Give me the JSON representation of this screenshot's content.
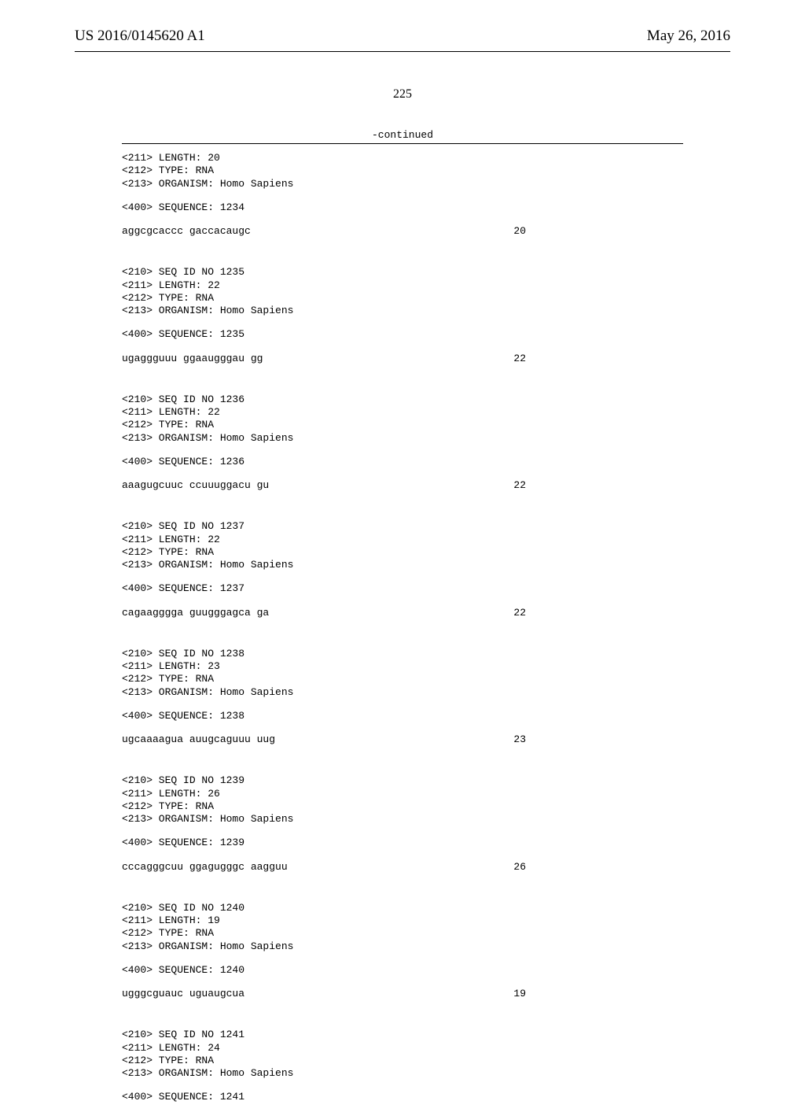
{
  "header": {
    "left": "US 2016/0145620 A1",
    "right": "May 26, 2016"
  },
  "page_number": "225",
  "continued_label": "-continued",
  "sequences": [
    {
      "show_seq_id": false,
      "seq_id": "",
      "length": "20",
      "type": "RNA",
      "organism": "Homo Sapiens",
      "seq_number": "1234",
      "data": "aggcgcaccc gaccacaugc",
      "data_length": "20"
    },
    {
      "show_seq_id": true,
      "seq_id": "1235",
      "length": "22",
      "type": "RNA",
      "organism": "Homo Sapiens",
      "seq_number": "1235",
      "data": "ugaggguuu ggaaugggau gg",
      "data_length": "22"
    },
    {
      "show_seq_id": true,
      "seq_id": "1236",
      "length": "22",
      "type": "RNA",
      "organism": "Homo Sapiens",
      "seq_number": "1236",
      "data": "aaagugcuuc ccuuuggacu gu",
      "data_length": "22"
    },
    {
      "show_seq_id": true,
      "seq_id": "1237",
      "length": "22",
      "type": "RNA",
      "organism": "Homo Sapiens",
      "seq_number": "1237",
      "data": "cagaagggga guugggagca ga",
      "data_length": "22"
    },
    {
      "show_seq_id": true,
      "seq_id": "1238",
      "length": "23",
      "type": "RNA",
      "organism": "Homo Sapiens",
      "seq_number": "1238",
      "data": "ugcaaaagua auugcaguuu uug",
      "data_length": "23"
    },
    {
      "show_seq_id": true,
      "seq_id": "1239",
      "length": "26",
      "type": "RNA",
      "organism": "Homo Sapiens",
      "seq_number": "1239",
      "data": "cccagggcuu ggagugggc aagguu",
      "data_length": "26"
    },
    {
      "show_seq_id": true,
      "seq_id": "1240",
      "length": "19",
      "type": "RNA",
      "organism": "Homo Sapiens",
      "seq_number": "1240",
      "data": "ugggcguauc uguaugcua",
      "data_length": "19"
    },
    {
      "show_seq_id": true,
      "seq_id": "1241",
      "length": "24",
      "type": "RNA",
      "organism": "Homo Sapiens",
      "seq_number": "1241",
      "data": "",
      "data_length": ""
    }
  ],
  "labels": {
    "seq_id_prefix": "<210> SEQ ID NO ",
    "length_prefix": "<211> LENGTH: ",
    "type_prefix": "<212> TYPE: ",
    "organism_prefix": "<213> ORGANISM: ",
    "sequence_prefix": "<400> SEQUENCE: "
  }
}
